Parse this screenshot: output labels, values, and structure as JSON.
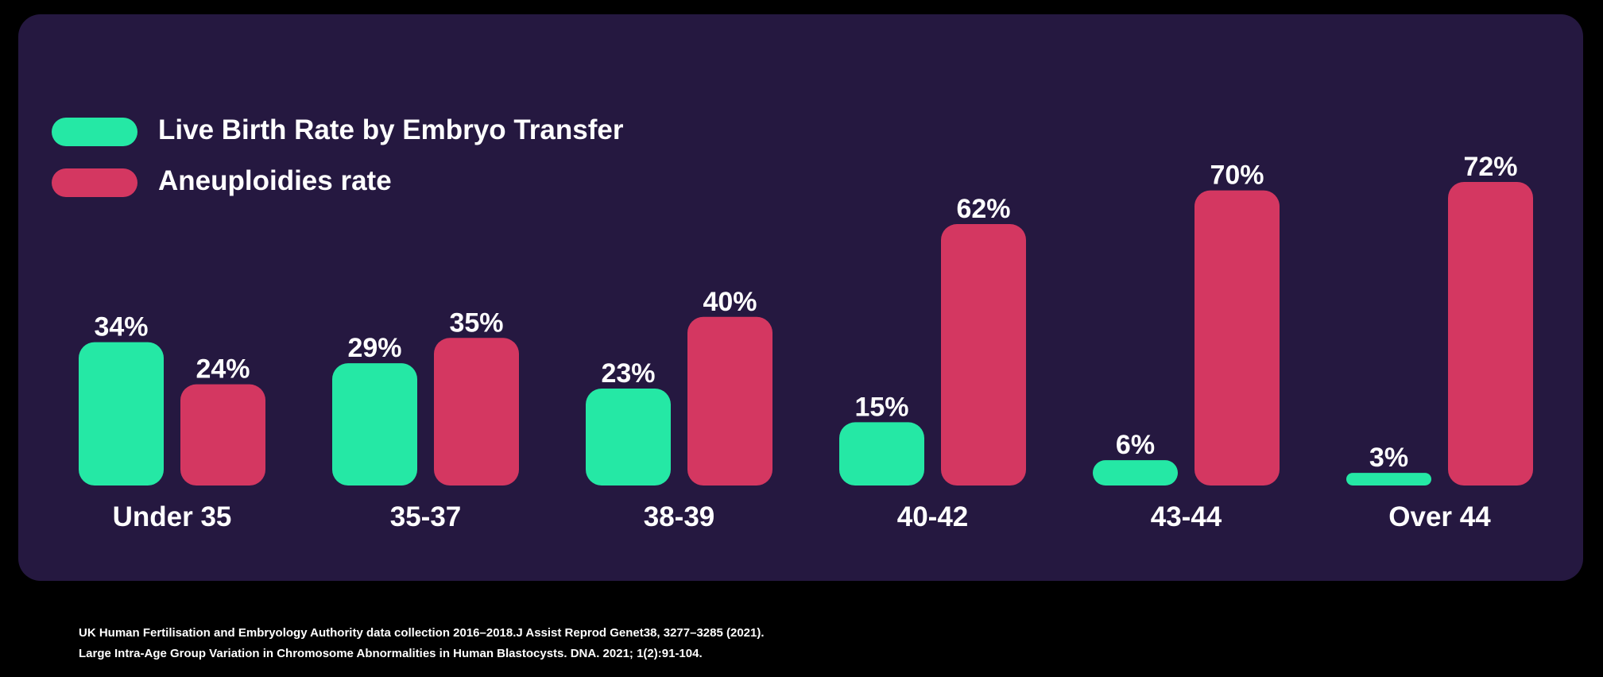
{
  "colors": {
    "background": "#000000",
    "card": "#251840",
    "text": "#ffffff"
  },
  "legend": [
    {
      "label": "Live Birth Rate by Embryo Transfer",
      "color": "#25e8a5"
    },
    {
      "label": "Aneuploidies rate",
      "color": "#d43761"
    }
  ],
  "chart_data": {
    "type": "bar",
    "title": "",
    "xlabel": "",
    "ylabel": "",
    "ylim": [
      0,
      72
    ],
    "grid": false,
    "legend_position": "top-left",
    "categories": [
      "Under 35",
      "35-37",
      "38-39",
      "40-42",
      "43-44",
      "Over 44"
    ],
    "series": [
      {
        "name": "Live Birth Rate by Embryo Transfer",
        "color": "#25e8a5",
        "values": [
          34,
          29,
          23,
          15,
          6,
          3
        ],
        "labels": [
          "34%",
          "29%",
          "23%",
          "15%",
          "6%",
          "3%"
        ]
      },
      {
        "name": "Aneuploidies rate",
        "color": "#d43761",
        "values": [
          24,
          35,
          40,
          62,
          70,
          72
        ],
        "labels": [
          "24%",
          "35%",
          "40%",
          "62%",
          "70%",
          "72%"
        ]
      }
    ]
  },
  "sources": [
    "UK Human Fertilisation and Embryology Authority data collection 2016–2018.J Assist Reprod Genet38, 3277–3285 (2021).",
    "Large Intra-Age Group Variation in Chromosome Abnormalities in Human Blastocysts. DNA. 2021; 1(2):91-104."
  ]
}
